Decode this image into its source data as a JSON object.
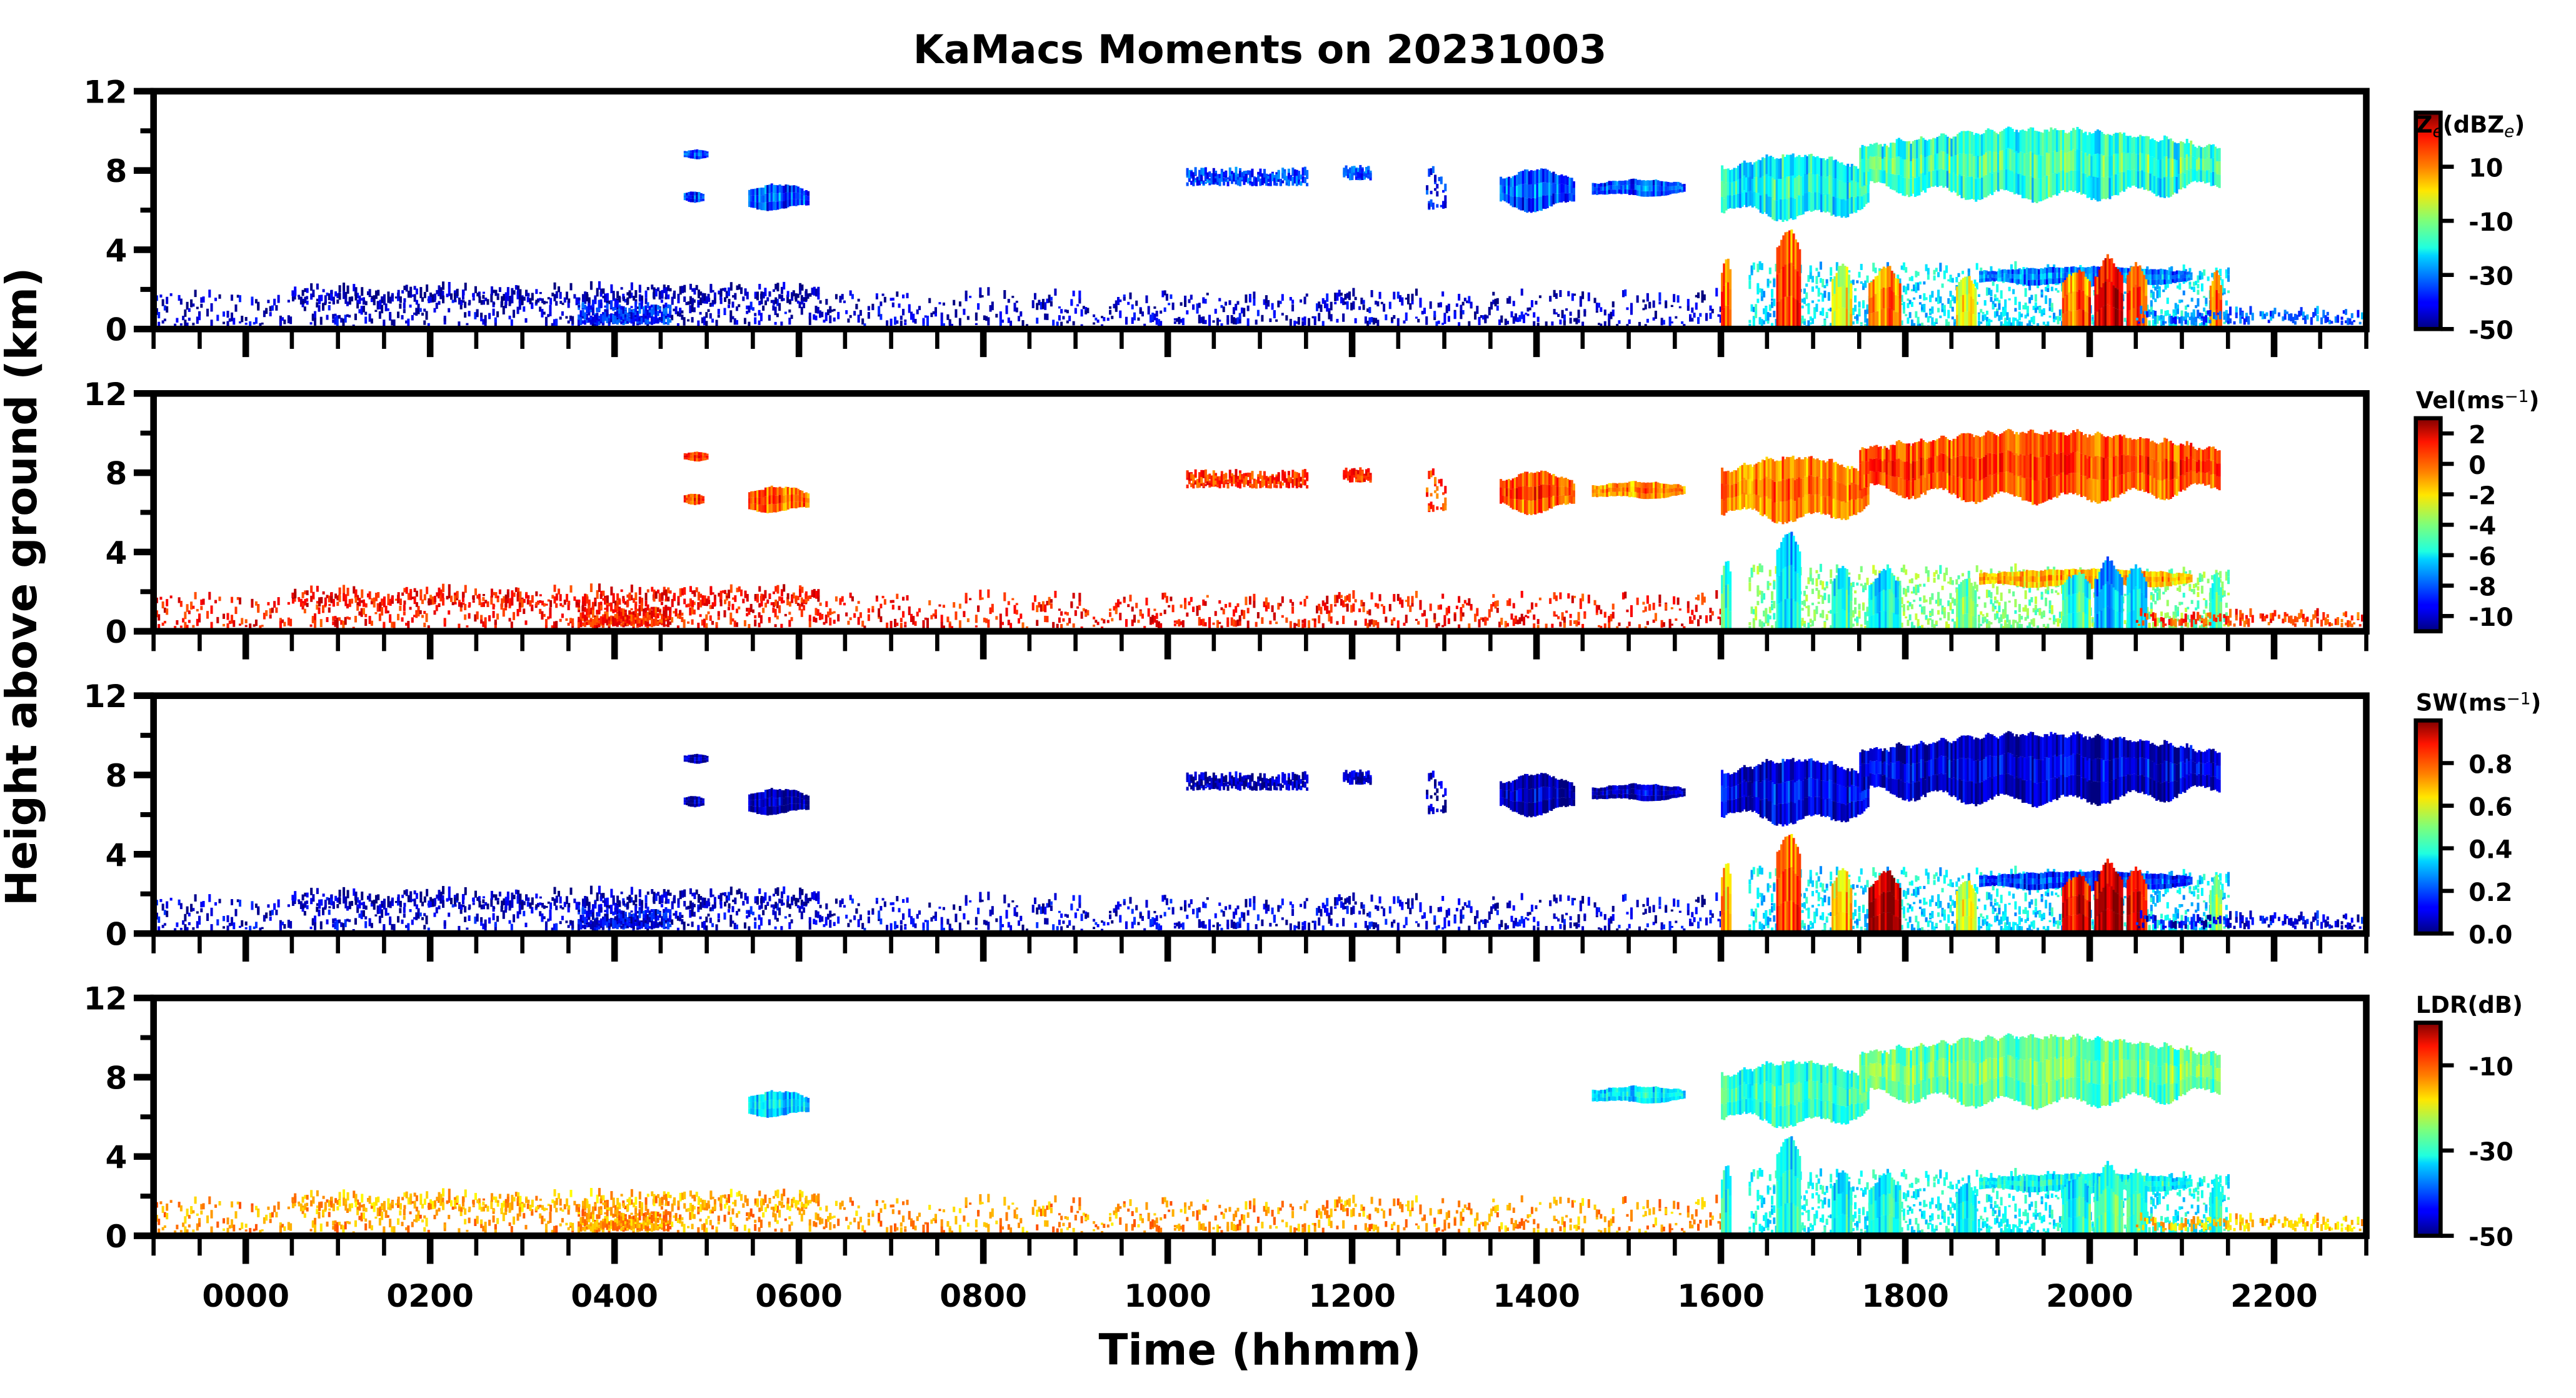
{
  "chart_data": {
    "type": "heatmap",
    "title": "KaMacs Moments on 20231003",
    "xlabel": "Time (hhmm)",
    "ylabel": "Height above ground (km)",
    "xlim_hours": [
      -1,
      23
    ],
    "ylim_km": [
      0,
      12
    ],
    "x_ticks": [
      {
        "h": 0,
        "label": "0000"
      },
      {
        "h": 2,
        "label": "0200"
      },
      {
        "h": 4,
        "label": "0400"
      },
      {
        "h": 6,
        "label": "0600"
      },
      {
        "h": 8,
        "label": "0800"
      },
      {
        "h": 10,
        "label": "1000"
      },
      {
        "h": 12,
        "label": "1200"
      },
      {
        "h": 14,
        "label": "1400"
      },
      {
        "h": 16,
        "label": "1600"
      },
      {
        "h": 18,
        "label": "1800"
      },
      {
        "h": 20,
        "label": "2000"
      },
      {
        "h": 22,
        "label": "2200"
      }
    ],
    "y_ticks": [
      "0",
      "4",
      "8",
      "12"
    ],
    "panels": [
      {
        "variable": "ze",
        "colorbar_label_main": "Z",
        "colorbar_label_sub": "e",
        "colorbar_label_rest": "(dBZ",
        "colorbar_label_sub2": "e",
        "colorbar_label_end": ")",
        "range": [
          -50,
          30
        ],
        "ticks": [
          {
            "v": 10,
            "label": "10"
          },
          {
            "v": -10,
            "label": "-10"
          },
          {
            "v": -30,
            "label": "-30"
          },
          {
            "v": -50,
            "label": "-50"
          }
        ]
      },
      {
        "variable": "vel",
        "colorbar_label": "Vel(ms",
        "colorbar_exp": "−1",
        "colorbar_end": ")",
        "range": [
          -11,
          3
        ],
        "ticks": [
          {
            "v": 2,
            "label": "2"
          },
          {
            "v": 0,
            "label": "0"
          },
          {
            "v": -2,
            "label": "-2"
          },
          {
            "v": -4,
            "label": "-4"
          },
          {
            "v": -6,
            "label": "-6"
          },
          {
            "v": -8,
            "label": "-8"
          },
          {
            "v": -10,
            "label": "-10"
          }
        ]
      },
      {
        "variable": "sw",
        "colorbar_label": "SW(ms",
        "colorbar_exp": "−1",
        "colorbar_end": ")",
        "range": [
          0,
          1
        ],
        "ticks": [
          {
            "v": 0.8,
            "label": "0.8"
          },
          {
            "v": 0.6,
            "label": "0.6"
          },
          {
            "v": 0.4,
            "label": "0.4"
          },
          {
            "v": 0.2,
            "label": "0.2"
          },
          {
            "v": 0.0,
            "label": "0.0"
          }
        ]
      },
      {
        "variable": "ldr",
        "colorbar_label": "LDR(dB)",
        "colorbar_exp": "",
        "colorbar_end": "",
        "range": [
          -50,
          0
        ],
        "ticks": [
          {
            "v": -10,
            "label": "-10"
          },
          {
            "v": -30,
            "label": "-30"
          },
          {
            "v": -50,
            "label": "-50"
          }
        ]
      }
    ],
    "echoes": [
      {
        "name": "boundary-layer-clutter",
        "time_h": [
          -1,
          16
        ],
        "height_km": [
          0.1,
          1.7
        ],
        "coverage": 0.35,
        "ze": -45,
        "vel": 1.0,
        "sw": 0.08,
        "ldr": -14
      },
      {
        "name": "boundary-layer-top",
        "time_h": [
          0.5,
          6.3
        ],
        "height_km": [
          1.2,
          2.0
        ],
        "coverage": 0.3,
        "ze": -47,
        "vel": 1.2,
        "sw": 0.05,
        "ldr": -15
      },
      {
        "name": "morning-low-echo",
        "time_h": [
          3.6,
          4.6
        ],
        "height_km": [
          0.2,
          1.1
        ],
        "coverage": 0.8,
        "ze": -38,
        "vel": 0.8,
        "sw": 0.1,
        "ldr": -14
      },
      {
        "name": "cloud-0450",
        "time_h": [
          4.75,
          4.95
        ],
        "height_km": [
          6.4,
          7.0
        ],
        "coverage": 1,
        "ze": -35,
        "vel": 0.5,
        "sw": 0.05,
        "ldr": null
      },
      {
        "name": "cloud-0450-upper",
        "time_h": [
          4.75,
          5.0
        ],
        "height_km": [
          8.6,
          9.1
        ],
        "coverage": 1,
        "ze": -35,
        "vel": 0.5,
        "sw": 0.05,
        "ldr": null
      },
      {
        "name": "cloud-0530",
        "time_h": [
          5.45,
          6.1
        ],
        "height_km": [
          6.0,
          7.4
        ],
        "coverage": 1,
        "ze": -32,
        "vel": 0.3,
        "sw": 0.06,
        "ldr": -32
      },
      {
        "name": "cloud-1000",
        "time_h": [
          10.2,
          11.5
        ],
        "height_km": [
          7.2,
          7.8
        ],
        "coverage": 0.7,
        "ze": -35,
        "vel": 0.6,
        "sw": 0.05,
        "ldr": null
      },
      {
        "name": "cloud-1200",
        "time_h": [
          11.9,
          12.2
        ],
        "height_km": [
          7.5,
          8.0
        ],
        "coverage": 0.8,
        "ze": -35,
        "vel": 0.6,
        "sw": 0.05,
        "ldr": null
      },
      {
        "name": "cloud-1245",
        "time_h": [
          12.8,
          13.0
        ],
        "height_km": [
          6.0,
          8.0
        ],
        "coverage": 0.5,
        "ze": -38,
        "vel": 0.4,
        "sw": 0.05,
        "ldr": null
      },
      {
        "name": "cloud-1400",
        "time_h": [
          13.6,
          14.4
        ],
        "height_km": [
          6.0,
          8.2
        ],
        "coverage": 0.9,
        "ze": -32,
        "vel": 0.4,
        "sw": 0.06,
        "ldr": null
      },
      {
        "name": "cloud-1500",
        "time_h": [
          14.6,
          15.6
        ],
        "height_km": [
          6.7,
          7.6
        ],
        "coverage": 0.9,
        "ze": -33,
        "vel": -0.6,
        "sw": 0.06,
        "ldr": -32
      },
      {
        "name": "anvil",
        "time_h": [
          16.0,
          17.6
        ],
        "height_km": [
          5.6,
          9.0
        ],
        "coverage": 1,
        "ze": -18,
        "vel": -0.3,
        "sw": 0.12,
        "ldr": -28
      },
      {
        "name": "upper-cirrus",
        "time_h": [
          17.5,
          21.4
        ],
        "height_km": [
          6.6,
          10.3
        ],
        "coverage": 1,
        "ze": -14,
        "vel": 0.5,
        "sw": 0.1,
        "ldr": -25
      },
      {
        "name": "convective-field",
        "time_h": [
          16.3,
          21.5
        ],
        "height_km": [
          0.0,
          3.0
        ],
        "coverage": 0.7,
        "ze": -22,
        "vel": -4,
        "sw": 0.35,
        "ldr": -31
      },
      {
        "name": "melting-layer-echo",
        "time_h": [
          18.8,
          21.1
        ],
        "height_km": [
          2.2,
          3.2
        ],
        "coverage": 1,
        "ze": -28,
        "vel": -1,
        "sw": 0.2,
        "ldr": -30
      },
      {
        "name": "core-1600",
        "time_h": [
          16.0,
          16.1
        ],
        "height_km": [
          0.0,
          4.0
        ],
        "coverage": 1,
        "ze": 12,
        "vel": -5,
        "sw": 0.7,
        "ldr": -30
      },
      {
        "name": "core-1640",
        "time_h": [
          16.6,
          16.85
        ],
        "height_km": [
          0.0,
          5.5
        ],
        "coverage": 1,
        "ze": 15,
        "vel": -6,
        "sw": 0.8,
        "ldr": -30
      },
      {
        "name": "core-1720",
        "time_h": [
          17.2,
          17.4
        ],
        "height_km": [
          0.0,
          3.5
        ],
        "coverage": 1,
        "ze": 0,
        "vel": -5,
        "sw": 0.7,
        "ldr": -30
      },
      {
        "name": "core-1740",
        "time_h": [
          17.6,
          17.95
        ],
        "height_km": [
          0.0,
          3.3
        ],
        "coverage": 1,
        "ze": 8,
        "vel": -6,
        "sw": 0.95,
        "ldr": -31
      },
      {
        "name": "core-1830",
        "time_h": [
          18.55,
          18.75
        ],
        "height_km": [
          0.0,
          3.0
        ],
        "coverage": 1,
        "ze": 0,
        "vel": -4,
        "sw": 0.6,
        "ldr": -31
      },
      {
        "name": "core-1950",
        "time_h": [
          19.7,
          20.0
        ],
        "height_km": [
          0.0,
          3.2
        ],
        "coverage": 1,
        "ze": 12,
        "vel": -5,
        "sw": 0.9,
        "ldr": -30
      },
      {
        "name": "core-2010",
        "time_h": [
          20.05,
          20.35
        ],
        "height_km": [
          0.0,
          3.8
        ],
        "coverage": 1,
        "ze": 22,
        "vel": -7,
        "sw": 0.95,
        "ldr": -28
      },
      {
        "name": "core-2025",
        "time_h": [
          20.4,
          20.6
        ],
        "height_km": [
          0.0,
          3.6
        ],
        "coverage": 1,
        "ze": 15,
        "vel": -6,
        "sw": 0.9,
        "ldr": -28
      },
      {
        "name": "core-2120",
        "time_h": [
          21.3,
          21.42
        ],
        "height_km": [
          0.0,
          3.0
        ],
        "coverage": 1,
        "ze": 10,
        "vel": -5,
        "sw": 0.5,
        "ldr": -30
      },
      {
        "name": "evening-low-echo",
        "time_h": [
          20.5,
          23
        ],
        "height_km": [
          0.2,
          0.8
        ],
        "coverage": 0.3,
        "ze": -32,
        "vel": 0.5,
        "sw": 0.1,
        "ldr": -16
      }
    ]
  }
}
